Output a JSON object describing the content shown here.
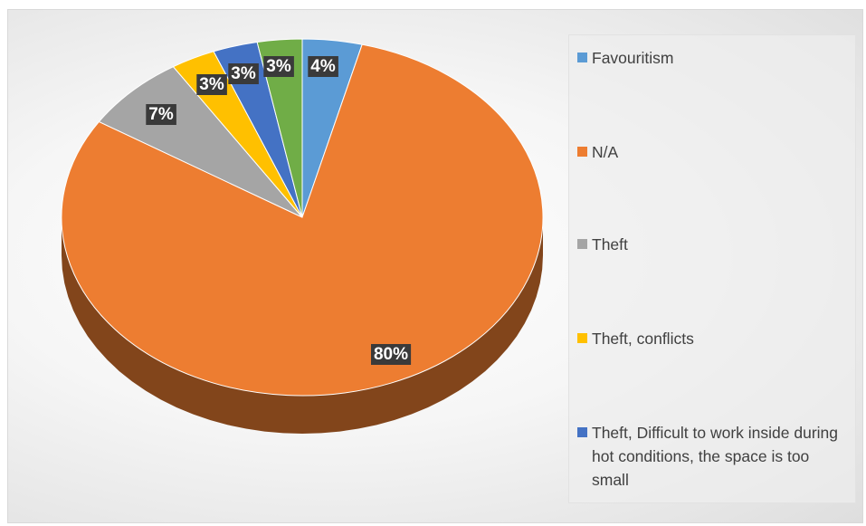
{
  "chart_data": {
    "type": "pie",
    "title": "",
    "categories": [
      "Favouritism",
      "N/A",
      "Theft",
      "Theft, conflicts",
      "Theft, Difficult to work inside during hot conditions, the space is too small",
      ""
    ],
    "values": [
      4,
      80,
      7,
      3,
      3,
      3
    ],
    "labels": [
      "4%",
      "80%",
      "7%",
      "3%",
      "3%",
      "3%"
    ],
    "colors": [
      "#5b9bd5",
      "#ed7d31",
      "#a5a5a5",
      "#ffc000",
      "#4472c4",
      "#70ad47"
    ],
    "legend_position": "right",
    "style": "3d"
  },
  "legend": {
    "items": [
      {
        "label": "Favouritism",
        "color": "#5b9bd5"
      },
      {
        "label": "N/A",
        "color": "#ed7d31"
      },
      {
        "label": "Theft",
        "color": "#a5a5a5"
      },
      {
        "label": "Theft, conflicts",
        "color": "#ffc000"
      },
      {
        "label": "Theft, Difficult to work inside during hot conditions, the space is too small",
        "color": "#4472c4"
      }
    ]
  }
}
